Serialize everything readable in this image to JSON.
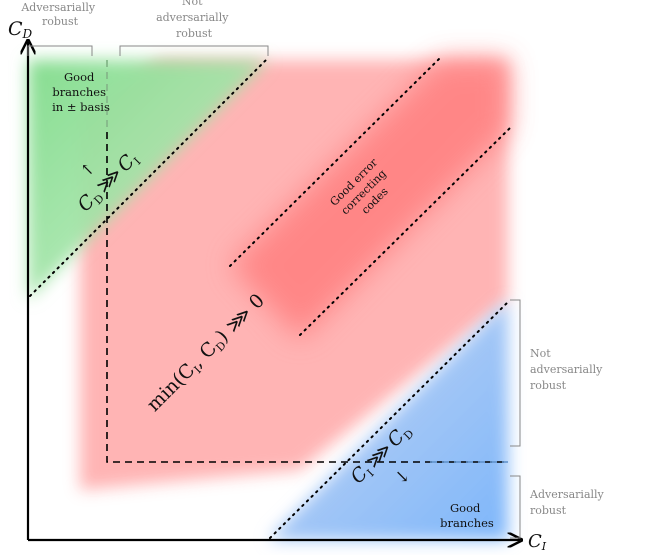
{
  "axes": {
    "y_label": "C",
    "y_sub": "D",
    "x_label": "C",
    "x_sub": "I"
  },
  "brackets": {
    "top_left": [
      "Adversarially",
      "robust"
    ],
    "top_right": [
      "Not",
      "adversarially",
      "robust"
    ],
    "right_upper": [
      "Not",
      "adversarially",
      "robust"
    ],
    "right_lower": [
      "Adversarially",
      "robust"
    ]
  },
  "regions": {
    "green": [
      "Good",
      "branches",
      "in ± basis"
    ],
    "blue": [
      "Good",
      "branches"
    ],
    "center": [
      "Good error",
      "correcting",
      "codes"
    ]
  },
  "formulas": {
    "upper": "C",
    "upper_sub_left": "D",
    "upper_rel": "⋙",
    "upper_sub_right": "I",
    "upper_arrow": "↑",
    "lower": "C",
    "lower_sub_left": "I",
    "lower_rel": "⋙",
    "lower_sub_right": "D",
    "lower_arrow": "↘",
    "min_prefix": "min(C",
    "min_sub1": "I",
    "min_mid": ", C",
    "min_sub2": "D",
    "min_suffix": ") ⋙ 0"
  },
  "colors": {
    "green": "#8fdd96",
    "blue": "#7fb4f5",
    "red": "#ff8080",
    "pink": "#ffb0b0"
  }
}
